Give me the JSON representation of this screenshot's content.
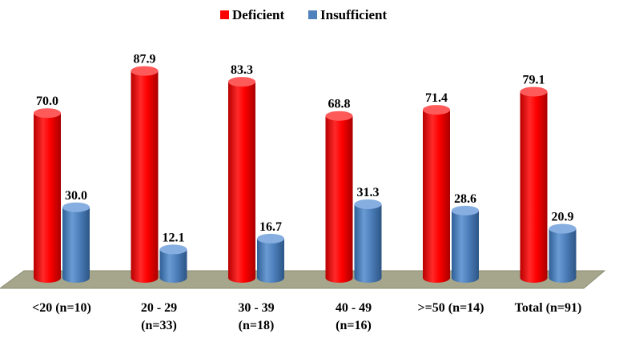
{
  "chart_data": {
    "type": "bar",
    "title": "",
    "xlabel": "",
    "ylabel": "",
    "ylim": [
      0,
      100
    ],
    "grid": false,
    "legend_position": "top-center",
    "categories": [
      "<20 (n=10)",
      "20 - 29 (n=33)",
      "30 - 39 (n=18)",
      "40 - 49 (n=16)",
      ">=50 (n=14)",
      "Total (n=91)"
    ],
    "category_lines": [
      [
        "<20 (n=10)"
      ],
      [
        "20 - 29",
        "(n=33)"
      ],
      [
        "30 - 39",
        "(n=18)"
      ],
      [
        "40 - 49",
        "(n=16)"
      ],
      [
        ">=50 (n=14)"
      ],
      [
        "Total (n=91)"
      ]
    ],
    "series": [
      {
        "name": "Deficient",
        "color": "#ff0000",
        "values": [
          70.0,
          87.9,
          83.3,
          68.8,
          71.4,
          79.1
        ],
        "value_labels": [
          "70.0",
          "87.9",
          "83.3",
          "68.8",
          "71.4",
          "79.1"
        ]
      },
      {
        "name": "Insufficient",
        "color": "#4f81bd",
        "values": [
          30.0,
          12.1,
          16.7,
          31.3,
          28.6,
          20.9
        ],
        "value_labels": [
          "30.0",
          "12.1",
          "16.7",
          "31.3",
          "28.6",
          "20.9"
        ]
      }
    ],
    "floor_color": "#a6a68c"
  }
}
